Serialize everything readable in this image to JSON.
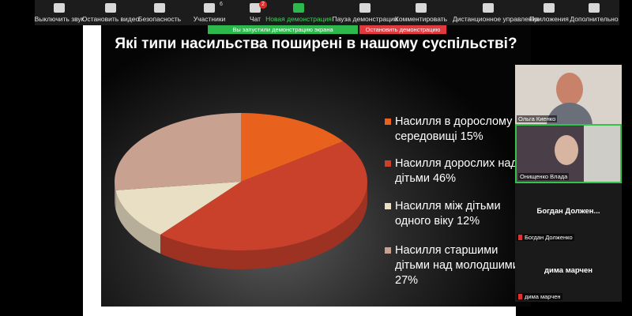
{
  "toolbar": {
    "items": [
      "Выключить звук",
      "Остановить видео",
      "Безопасность",
      "Участники",
      "Чат",
      "Новая демонстрация",
      "Пауза демонстрации",
      "Комментировать",
      "Дистанционное управление",
      "Приложения",
      "Дополнительно"
    ],
    "participants_count": 6,
    "chat_badge": 2
  },
  "share_banner": {
    "status": "Вы запустили демонстрацию экрана",
    "stop": "Остановить демонстрацию"
  },
  "chart_data": {
    "type": "pie",
    "title": "Які типи насильства поширені в нашому суспільстві?",
    "categories": [
      "Насилля в дорослому середовищі",
      "Насилля дорослих над дітьми",
      "Насилля між дітьми одного віку",
      "Насилля старшими дітьми над молодшими"
    ],
    "values": [
      15,
      46,
      12,
      27
    ],
    "value_labels": [
      "15%",
      "46%",
      "12%",
      "27%"
    ],
    "colors": [
      "#e8621e",
      "#c9402b",
      "#e9dfc4",
      "#c9a191"
    ]
  },
  "participants": [
    {
      "name": "Ольга Киенко"
    },
    {
      "name": "Онищенко Влада"
    },
    {
      "name": "Богдан Долженко",
      "tile_name": "Богдан Должен..."
    },
    {
      "name": "дима марчен",
      "tile_name": "дима марчен"
    }
  ]
}
